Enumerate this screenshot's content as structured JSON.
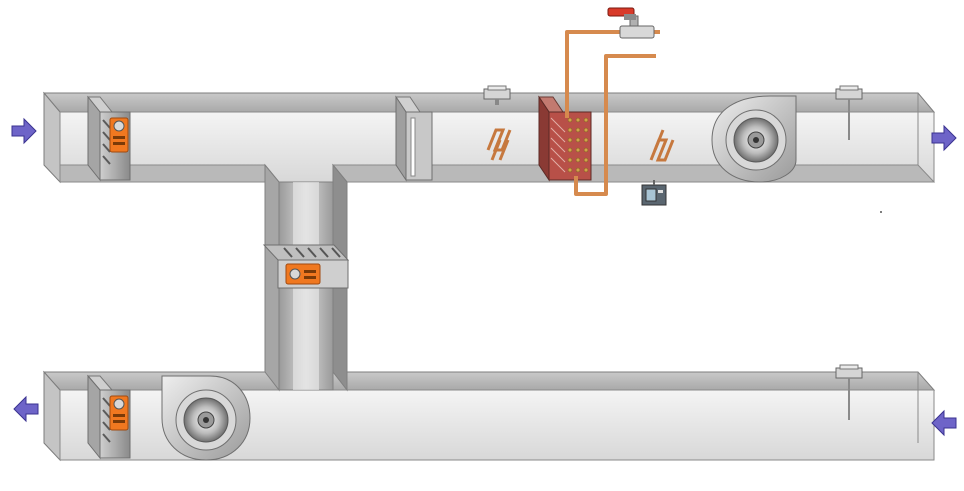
{
  "diagram": {
    "kind": "air-handling-unit",
    "components": {
      "arrows": [
        "outside-air-inlet-arrow",
        "supply-air-outlet-arrow",
        "exhaust-air-outlet-arrow",
        "return-air-inlet-arrow"
      ],
      "dampers": [
        "outside-air-damper",
        "mixing-damper",
        "exhaust-air-damper"
      ],
      "actuators": [
        "outside-air-damper-actuator",
        "mixing-damper-actuator",
        "exhaust-air-damper-actuator"
      ],
      "filter": "air-filter",
      "heater": "electric-heater",
      "coil": "water-coil",
      "valve": "coil-valve",
      "fans": [
        "supply-fan",
        "return-fan"
      ],
      "sensors": [
        "supply-temperature-sensor",
        "supply-duct-sensor",
        "return-duct-sensor",
        "frost-protection-sensor",
        "control-box"
      ]
    },
    "colors": {
      "duct_light": "#e6e6e6",
      "duct_dark": "#8f8f8f",
      "arrow": "#6e64c8",
      "actuator": "#f07820",
      "pipe": "#d68a4e",
      "valve_handle": "#d83a2a",
      "heater_coil": "#c6783e",
      "coil_body": "#b85048"
    }
  }
}
